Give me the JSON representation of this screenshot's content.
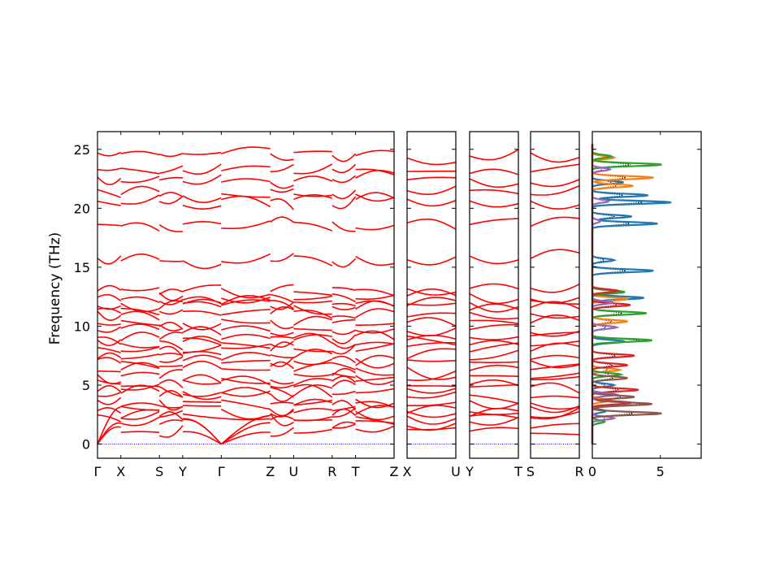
{
  "chart_data": [
    {
      "type": "line",
      "ylabel": "Frequency (THz)",
      "ylim": [
        -1.2,
        26.5
      ],
      "yticks": [
        0,
        5,
        10,
        15,
        20,
        25
      ],
      "grid": false,
      "legend": "none",
      "colors": {
        "bands": "#ff0000",
        "zero_line": "#0000ff"
      },
      "panels": [
        {
          "segments": [
            {
              "from": "Γ",
              "to": "X",
              "xstart": 0.0,
              "length": 1.0,
              "gamma_start": true
            },
            {
              "from": "X",
              "to": "S",
              "xstart": 1.0,
              "length": 1.65
            },
            {
              "from": "S",
              "to": "Y",
              "xstart": 2.65,
              "length": 1.0
            },
            {
              "from": "Y",
              "to": "Γ",
              "xstart": 3.65,
              "length": 1.65,
              "gamma_end": true
            },
            {
              "from": "Γ",
              "to": "Z",
              "xstart": 5.3,
              "length": 2.1,
              "gamma_start": true
            },
            {
              "from": "Z",
              "to": "U",
              "xstart": 7.4,
              "length": 1.0
            },
            {
              "from": "U",
              "to": "R",
              "xstart": 8.4,
              "length": 1.65
            },
            {
              "from": "R",
              "to": "T",
              "xstart": 10.05,
              "length": 1.0
            },
            {
              "from": "T",
              "to": "Z",
              "xstart": 11.05,
              "length": 1.65
            }
          ],
          "xticks": [
            {
              "label": "Γ",
              "x": 0.0
            },
            {
              "label": "X",
              "x": 1.0
            },
            {
              "label": "S",
              "x": 2.65
            },
            {
              "label": "Y",
              "x": 3.65
            },
            {
              "label": "Γ",
              "x": 5.3
            },
            {
              "label": "Z",
              "x": 7.4
            },
            {
              "label": "U",
              "x": 8.4
            },
            {
              "label": "R",
              "x": 10.05
            },
            {
              "label": "T",
              "x": 11.05
            },
            {
              "label": "Z",
              "x": 12.7
            }
          ]
        },
        {
          "segments": [
            {
              "from": "X",
              "to": "U",
              "xstart": 0.0,
              "length": 2.1
            }
          ],
          "xticks": [
            {
              "label": "X",
              "x": 0.0
            },
            {
              "label": "U",
              "x": 2.1
            }
          ]
        },
        {
          "segments": [
            {
              "from": "Y",
              "to": "T",
              "xstart": 0.0,
              "length": 2.1
            }
          ],
          "xticks": [
            {
              "label": "Y",
              "x": 0.0
            },
            {
              "label": "T",
              "x": 2.1
            }
          ]
        },
        {
          "segments": [
            {
              "from": "S",
              "to": "R",
              "xstart": 0.0,
              "length": 2.1
            }
          ],
          "xticks": [
            {
              "label": "S",
              "x": 0.0
            },
            {
              "label": "R",
              "x": 2.1
            }
          ]
        }
      ],
      "bands_at_gamma": [
        0,
        0,
        0,
        2.3,
        3.0,
        3.5,
        4.1,
        4.6,
        5.2,
        5.7,
        6.3,
        6.9,
        7.4,
        8.0,
        8.6,
        9.0,
        9.7,
        10.3,
        11.0,
        11.6,
        12.0,
        12.5,
        13.0,
        15.7,
        18.6,
        20.5,
        21.3,
        22.4,
        23.2,
        24.5
      ],
      "band_gaps": [
        [
          13.4,
          15.8
        ],
        [
          16.1,
          18.5
        ]
      ]
    },
    {
      "type": "area",
      "description_axis": "projected phonon DOS",
      "xlim": [
        0,
        8
      ],
      "xticks": [
        0,
        5
      ],
      "ylim": [
        -1.2,
        26.5
      ],
      "total_dos_style": "black dotted",
      "series": [
        {
          "color": "#1f77b4",
          "peaks": [
            [
              2.8,
              1.0
            ],
            [
              5.0,
              1.6
            ],
            [
              8.7,
              2.4
            ],
            [
              12.4,
              3.8
            ],
            [
              14.7,
              4.5
            ],
            [
              15.6,
              1.6
            ],
            [
              18.7,
              4.8
            ],
            [
              19.3,
              2.9
            ],
            [
              20.5,
              5.8
            ],
            [
              21.1,
              4.1
            ],
            [
              22.2,
              2.3
            ]
          ]
        },
        {
          "color": "#ff7f0e",
          "peaks": [
            [
              3.7,
              1.4
            ],
            [
              6.3,
              2.0
            ],
            [
              10.4,
              2.6
            ],
            [
              12.3,
              2.6
            ],
            [
              21.9,
              3.0
            ],
            [
              22.6,
              4.5
            ],
            [
              24.3,
              1.6
            ]
          ]
        },
        {
          "color": "#2ca02c",
          "peaks": [
            [
              1.9,
              0.9
            ],
            [
              5.9,
              2.1
            ],
            [
              8.8,
              4.4
            ],
            [
              11.1,
              4.0
            ],
            [
              12.9,
              2.4
            ],
            [
              23.7,
              5.1
            ],
            [
              24.4,
              1.4
            ]
          ]
        },
        {
          "color": "#d62728",
          "peaks": [
            [
              3.5,
              2.9
            ],
            [
              4.6,
              3.4
            ],
            [
              6.7,
              2.6
            ],
            [
              7.5,
              3.1
            ],
            [
              11.8,
              2.8
            ],
            [
              13.0,
              1.9
            ]
          ]
        },
        {
          "color": "#9467bd",
          "peaks": [
            [
              2.2,
              1.6
            ],
            [
              4.2,
              1.8
            ],
            [
              9.9,
              1.8
            ],
            [
              12.0,
              1.5
            ],
            [
              18.9,
              0.6
            ],
            [
              20.6,
              1.2
            ],
            [
              23.3,
              1.3
            ]
          ]
        },
        {
          "color": "#8c564b",
          "peaks": [
            [
              2.6,
              5.1
            ],
            [
              3.4,
              4.4
            ],
            [
              4.0,
              3.1
            ],
            [
              5.6,
              2.6
            ]
          ]
        }
      ]
    }
  ]
}
